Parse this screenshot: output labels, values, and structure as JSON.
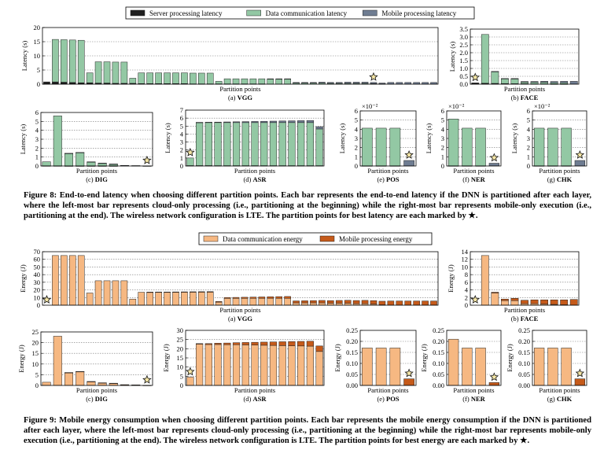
{
  "figure8": {
    "caption": "Figure 8: End-to-end latency when choosing different partition points. Each bar represents the end-to-end latency if the DNN is partitioned after each layer, where the left-most bar represents cloud-only processing (i.e., partitioning at the beginning) while the right-most bar represents mobile-only execution (i.e., partitioning at the end). The wireless network configuration is LTE. The partition points for best latency are each marked by ★.",
    "legend": [
      "Server processing latency",
      "Data communication latency",
      "Mobile processing latency"
    ],
    "colors": {
      "server": "#1f1f1f",
      "comm": "#93c8a4",
      "mobile": "#6f7d92"
    }
  },
  "figure9": {
    "caption": "Figure 9: Mobile energy consumption when choosing different partition points. Each bar represents the mobile energy consumption if the DNN is partitioned after each layer, where the left-most bar represents cloud-only processing (i.e., partitioning at the beginning) while the right-most bar represents mobile-only execution (i.e., partitioning at the end). The wireless network configuration is LTE. The partition points for best energy are each marked by ★.",
    "legend": [
      "Data communication energy",
      "Mobile processing energy"
    ],
    "colors": {
      "comm": "#f6b882",
      "mobile": "#c55a1a"
    }
  },
  "chart_data": [
    {
      "type": "bar",
      "stacked": true,
      "title": "(a) VGG",
      "xlabel": "Partition points",
      "ylabel": "Latency (s)",
      "ylim": [
        0,
        20
      ],
      "yticks": [
        "0",
        "5",
        "10",
        "15",
        "20"
      ],
      "grid": "horizontal",
      "best_index": 38,
      "series": [
        {
          "name": "Server processing latency",
          "values": [
            0.8,
            0.8,
            0.7,
            0.6,
            0.5,
            0.5,
            0.4,
            0.4,
            0.3,
            0.3,
            0.3,
            0.2,
            0.2,
            0.2,
            0.2,
            0.2,
            0.2,
            0.1,
            0.1,
            0.1,
            0.1,
            0.1,
            0.1,
            0.1,
            0.1,
            0.1,
            0,
            0,
            0,
            0,
            0,
            0,
            0,
            0,
            0,
            0,
            0,
            0,
            0,
            0,
            0,
            0,
            0,
            0,
            0,
            0
          ]
        },
        {
          "name": "Data communication latency",
          "values": [
            0,
            15,
            15,
            15,
            15,
            3.5,
            7.5,
            7.5,
            7.5,
            7.5,
            1.8,
            3.8,
            3.8,
            3.8,
            3.8,
            3.8,
            3.8,
            3.8,
            3.8,
            3.8,
            0.9,
            1.8,
            1.8,
            1.8,
            1.8,
            1.8,
            1.8,
            1.8,
            1.8,
            0.4,
            0.4,
            0.4,
            0.4,
            0.3,
            0.3,
            0.3,
            0.3,
            0.3,
            0.2,
            0.1,
            0,
            0,
            0,
            0,
            0,
            0
          ]
        },
        {
          "name": "Mobile processing latency",
          "values": [
            0,
            0,
            0,
            0,
            0,
            0,
            0,
            0,
            0,
            0,
            0,
            0,
            0,
            0,
            0,
            0,
            0,
            0,
            0,
            0,
            0,
            0,
            0,
            0,
            0,
            0,
            0.1,
            0.1,
            0.1,
            0.2,
            0.2,
            0.2,
            0.3,
            0.3,
            0.3,
            0.4,
            0.4,
            0.4,
            0.4,
            0.3,
            0.6,
            0.6,
            0.6,
            0.6,
            0.6,
            0.6
          ]
        }
      ]
    },
    {
      "type": "bar",
      "stacked": true,
      "title": "(b) FACE",
      "xlabel": "Partition points",
      "ylabel": "Latency (s)",
      "ylim": [
        0,
        3.5
      ],
      "yticks": [
        "0.0",
        "0.5",
        "1.0",
        "1.5",
        "2.0",
        "2.5",
        "3.0",
        "3.5"
      ],
      "grid": "horizontal",
      "best_index": 0,
      "series": [
        {
          "name": "Server processing latency",
          "values": [
            0.08,
            0.06,
            0.05,
            0.04,
            0.03,
            0.03,
            0.02,
            0.02,
            0.01,
            0.01,
            0
          ]
        },
        {
          "name": "Data communication latency",
          "values": [
            0,
            3.1,
            0.75,
            0.3,
            0.3,
            0.1,
            0.1,
            0.1,
            0.08,
            0.08,
            0
          ]
        },
        {
          "name": "Mobile processing latency",
          "values": [
            0,
            0,
            0.01,
            0.02,
            0.03,
            0.04,
            0.05,
            0.06,
            0.08,
            0.09,
            0.18
          ]
        }
      ]
    },
    {
      "type": "bar",
      "stacked": true,
      "title": "(c) DIG",
      "xlabel": "Partition points",
      "ylabel": "Latency (s)",
      "ylim": [
        0,
        6
      ],
      "yticks": [
        "0",
        "1",
        "2",
        "3",
        "4",
        "5",
        "6"
      ],
      "grid": "horizontal",
      "best_index": 9,
      "series": [
        {
          "name": "Server processing latency",
          "values": [
            0.02,
            0.02,
            0.01,
            0.01,
            0.01,
            0.01,
            0.01,
            0,
            0,
            0
          ]
        },
        {
          "name": "Data communication latency",
          "values": [
            0.45,
            5.6,
            1.4,
            1.5,
            0.45,
            0.3,
            0.2,
            0.05,
            0.03,
            0
          ]
        },
        {
          "name": "Mobile processing latency",
          "values": [
            0,
            0,
            0.01,
            0.01,
            0.01,
            0.01,
            0.01,
            0.01,
            0.01,
            0.01
          ]
        }
      ]
    },
    {
      "type": "bar",
      "stacked": true,
      "title": "(d) ASR",
      "xlabel": "Partition points",
      "ylabel": "Latency (s)",
      "ylim": [
        0,
        7
      ],
      "yticks": [
        "0",
        "1",
        "2",
        "3",
        "4",
        "5",
        "6",
        "7"
      ],
      "grid": "horizontal",
      "best_index": 0,
      "series": [
        {
          "name": "Server processing latency",
          "values": [
            0.05,
            0.05,
            0.05,
            0.04,
            0.04,
            0.04,
            0.04,
            0.04,
            0.04,
            0.04,
            0.04,
            0.04,
            0.04,
            0.04,
            0.04
          ]
        },
        {
          "name": "Data communication latency",
          "values": [
            0.95,
            5.4,
            5.4,
            5.4,
            5.4,
            5.4,
            5.4,
            5.4,
            5.4,
            5.4,
            5.4,
            5.4,
            5.4,
            5.4,
            4.6
          ]
        },
        {
          "name": "Mobile processing latency",
          "values": [
            0,
            0.02,
            0.04,
            0.06,
            0.08,
            0.1,
            0.12,
            0.14,
            0.16,
            0.18,
            0.2,
            0.22,
            0.24,
            0.26,
            0.28
          ]
        }
      ]
    },
    {
      "type": "bar",
      "stacked": true,
      "title": "(e) POS",
      "xlabel": "Partition points",
      "ylabel": "Latency (s)",
      "scale_label": "×10⁻²",
      "ylim": [
        0,
        6
      ],
      "yticks": [
        "0",
        "1",
        "2",
        "3",
        "4",
        "5",
        "6"
      ],
      "grid": "horizontal",
      "best_index": 3,
      "series": [
        {
          "name": "Server processing latency",
          "values": [
            0.02,
            0.02,
            0.02,
            0
          ]
        },
        {
          "name": "Data communication latency",
          "values": [
            4.1,
            4.1,
            4.1,
            0
          ]
        },
        {
          "name": "Mobile processing latency",
          "values": [
            0,
            0,
            0,
            0.6
          ]
        }
      ]
    },
    {
      "type": "bar",
      "stacked": true,
      "title": "(f) NER",
      "xlabel": "Partition points",
      "ylabel": "Latency (s)",
      "scale_label": "×10⁻²",
      "ylim": [
        0,
        6
      ],
      "yticks": [
        "0",
        "1",
        "2",
        "3",
        "4",
        "5",
        "6"
      ],
      "grid": "horizontal",
      "best_index": 3,
      "series": [
        {
          "name": "Server processing latency",
          "values": [
            0.02,
            0.02,
            0.02,
            0
          ]
        },
        {
          "name": "Data communication latency",
          "values": [
            5.1,
            4.1,
            4.1,
            0
          ]
        },
        {
          "name": "Mobile processing latency",
          "values": [
            0,
            0,
            0,
            0.3
          ]
        }
      ]
    },
    {
      "type": "bar",
      "stacked": true,
      "title": "(g) CHK",
      "xlabel": "Partition points",
      "ylabel": "Latency (s)",
      "scale_label": "×10⁻²",
      "ylim": [
        0,
        6
      ],
      "yticks": [
        "0",
        "1",
        "2",
        "3",
        "4",
        "5",
        "6"
      ],
      "grid": "horizontal",
      "best_index": 3,
      "series": [
        {
          "name": "Server processing latency",
          "values": [
            0.02,
            0.02,
            0.02,
            0
          ]
        },
        {
          "name": "Data communication latency",
          "values": [
            4.1,
            4.1,
            4.1,
            0
          ]
        },
        {
          "name": "Mobile processing latency",
          "values": [
            0,
            0,
            0,
            0.6
          ]
        }
      ]
    },
    {
      "type": "bar",
      "stacked": true,
      "title": "(a) VGG",
      "xlabel": "Partition points",
      "ylabel": "Energy (J)",
      "ylim": [
        0,
        70
      ],
      "yticks": [
        "0",
        "10",
        "20",
        "30",
        "40",
        "50",
        "60",
        "70"
      ],
      "grid": "horizontal",
      "best_index": 0,
      "series": [
        {
          "name": "Data communication energy",
          "values": [
            0,
            65,
            65,
            65,
            65,
            16,
            32,
            32,
            32,
            32,
            8,
            17,
            17,
            17,
            17,
            17,
            17,
            17,
            17,
            17,
            4,
            9,
            9,
            9,
            9,
            9,
            9,
            9,
            9,
            3,
            3,
            3,
            3,
            2.5,
            2.5,
            2.5,
            2,
            2,
            1.5,
            0.5,
            0,
            0,
            0,
            0,
            0,
            0
          ]
        },
        {
          "name": "Mobile processing energy",
          "values": [
            0,
            0,
            0,
            0,
            0,
            0,
            0,
            0,
            0,
            0,
            0,
            0,
            0.2,
            0.3,
            0.3,
            0.4,
            0.5,
            0.6,
            0.7,
            0.8,
            0.9,
            1,
            1.2,
            1.4,
            1.6,
            1.8,
            2,
            2.2,
            2.4,
            2.6,
            2.8,
            3,
            3.2,
            3.5,
            3.7,
            3.9,
            4.1,
            4.3,
            4.5,
            4.7,
            5.5,
            5.5,
            5.5,
            5.5,
            5.5,
            5.5
          ]
        }
      ]
    },
    {
      "type": "bar",
      "stacked": true,
      "title": "(b) FACE",
      "xlabel": "Partition points",
      "ylabel": "Energy (J)",
      "ylim": [
        0,
        14
      ],
      "yticks": [
        "0",
        "2",
        "4",
        "6",
        "8",
        "10",
        "12",
        "14"
      ],
      "grid": "horizontal",
      "best_index": 0,
      "series": [
        {
          "name": "Data communication energy",
          "values": [
            0,
            13,
            3.2,
            1.2,
            1.2,
            0.4,
            0.4,
            0.3,
            0.2,
            0.1,
            0
          ]
        },
        {
          "name": "Mobile processing energy",
          "values": [
            0,
            0,
            0.2,
            0.4,
            0.6,
            0.9,
            1,
            1.1,
            1.2,
            1.3,
            1.5
          ]
        }
      ]
    },
    {
      "type": "bar",
      "stacked": true,
      "title": "(c) DIG",
      "xlabel": "Partition points",
      "ylabel": "Energy (J)",
      "ylim": [
        0,
        25
      ],
      "yticks": [
        "0",
        "5",
        "10",
        "15",
        "20",
        "25"
      ],
      "grid": "horizontal",
      "best_index": 9,
      "series": [
        {
          "name": "Data communication energy",
          "values": [
            1.5,
            23,
            6,
            6.5,
            1.8,
            1.2,
            1,
            0.3,
            0.2,
            0
          ]
        },
        {
          "name": "Mobile processing energy",
          "values": [
            0,
            0,
            0.02,
            0.03,
            0.03,
            0.04,
            0.04,
            0.05,
            0.05,
            0.06
          ]
        }
      ]
    },
    {
      "type": "bar",
      "stacked": true,
      "title": "(d) ASR",
      "xlabel": "Partition points",
      "ylabel": "Energy (J)",
      "ylim": [
        0,
        30
      ],
      "yticks": [
        "0",
        "5",
        "10",
        "15",
        "20",
        "25",
        "30"
      ],
      "grid": "horizontal",
      "best_index": 0,
      "series": [
        {
          "name": "Data communication energy",
          "values": [
            4.5,
            22.5,
            22.3,
            22.3,
            22.2,
            22.2,
            22.1,
            22,
            21.9,
            21.8,
            21.7,
            21.6,
            21.5,
            21.4,
            18.5
          ]
        },
        {
          "name": "Mobile processing energy",
          "values": [
            0,
            0.3,
            0.5,
            0.7,
            0.9,
            1.1,
            1.3,
            1.5,
            1.7,
            1.9,
            2.1,
            2.3,
            2.5,
            2.7,
            3
          ]
        }
      ]
    },
    {
      "type": "bar",
      "stacked": true,
      "title": "(e) POS",
      "xlabel": "Partition points",
      "ylabel": "Energy (J)",
      "ylim": [
        0,
        0.25
      ],
      "yticks": [
        "0.00",
        "0.05",
        "0.10",
        "0.15",
        "0.20",
        "0.25"
      ],
      "grid": "horizontal",
      "best_index": 3,
      "series": [
        {
          "name": "Data communication energy",
          "values": [
            0.17,
            0.17,
            0.17,
            0
          ]
        },
        {
          "name": "Mobile processing energy",
          "values": [
            0,
            0,
            0,
            0.03
          ]
        }
      ]
    },
    {
      "type": "bar",
      "stacked": true,
      "title": "(f) NER",
      "xlabel": "Partition points",
      "ylabel": "Energy (J)",
      "ylim": [
        0,
        0.25
      ],
      "yticks": [
        "0.00",
        "0.05",
        "0.10",
        "0.15",
        "0.20",
        "0.25"
      ],
      "grid": "horizontal",
      "best_index": 3,
      "series": [
        {
          "name": "Data communication energy",
          "values": [
            0.21,
            0.17,
            0.17,
            0
          ]
        },
        {
          "name": "Mobile processing energy",
          "values": [
            0,
            0,
            0,
            0.013
          ]
        }
      ]
    },
    {
      "type": "bar",
      "stacked": true,
      "title": "(g) CHK",
      "xlabel": "Partition points",
      "ylabel": "Energy (J)",
      "ylim": [
        0,
        0.25
      ],
      "yticks": [
        "0.00",
        "0.05",
        "0.10",
        "0.15",
        "0.20",
        "0.25"
      ],
      "grid": "horizontal",
      "best_index": 3,
      "series": [
        {
          "name": "Data communication energy",
          "values": [
            0.17,
            0.17,
            0.17,
            0
          ]
        },
        {
          "name": "Mobile processing energy",
          "values": [
            0,
            0,
            0,
            0.03
          ]
        }
      ]
    }
  ]
}
